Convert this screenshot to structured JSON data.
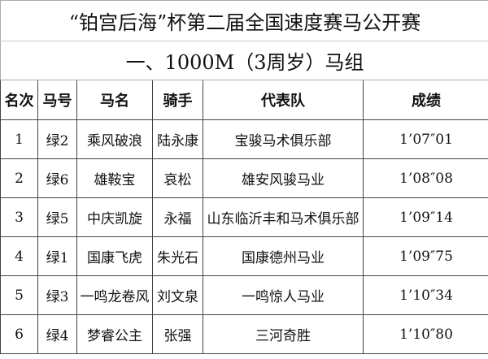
{
  "title": "“铂宫后海”杯第二届全国速度赛马公开赛",
  "subtitle": "一、1000M（3周岁）马组",
  "columns": [
    "名次",
    "马号",
    "马名",
    "骑手",
    "代表队",
    "成绩"
  ],
  "rows": [
    [
      "1",
      "绿2",
      "乘风破浪",
      "陆永康",
      "宝骏马术俱乐部",
      "1’07″01"
    ],
    [
      "2",
      "绿6",
      "雄鞍宝",
      "哀松",
      "雄安风骏马业",
      "1’08″08"
    ],
    [
      "3",
      "绿5",
      "中庆凯旋",
      "永福",
      "山东临沂丰和马术俱乐部",
      "1’09″14"
    ],
    [
      "4",
      "绿1",
      "国康飞虎",
      "朱光石",
      "国康德州马业",
      "1’09″75"
    ],
    [
      "5",
      "绿3",
      "一鸣龙卷风",
      "刘文泉",
      "一鸣惊人马业",
      "1’10″34"
    ],
    [
      "6",
      "绿4",
      "梦睿公主",
      "张强",
      "三河奇胜",
      "1’10″80"
    ]
  ]
}
